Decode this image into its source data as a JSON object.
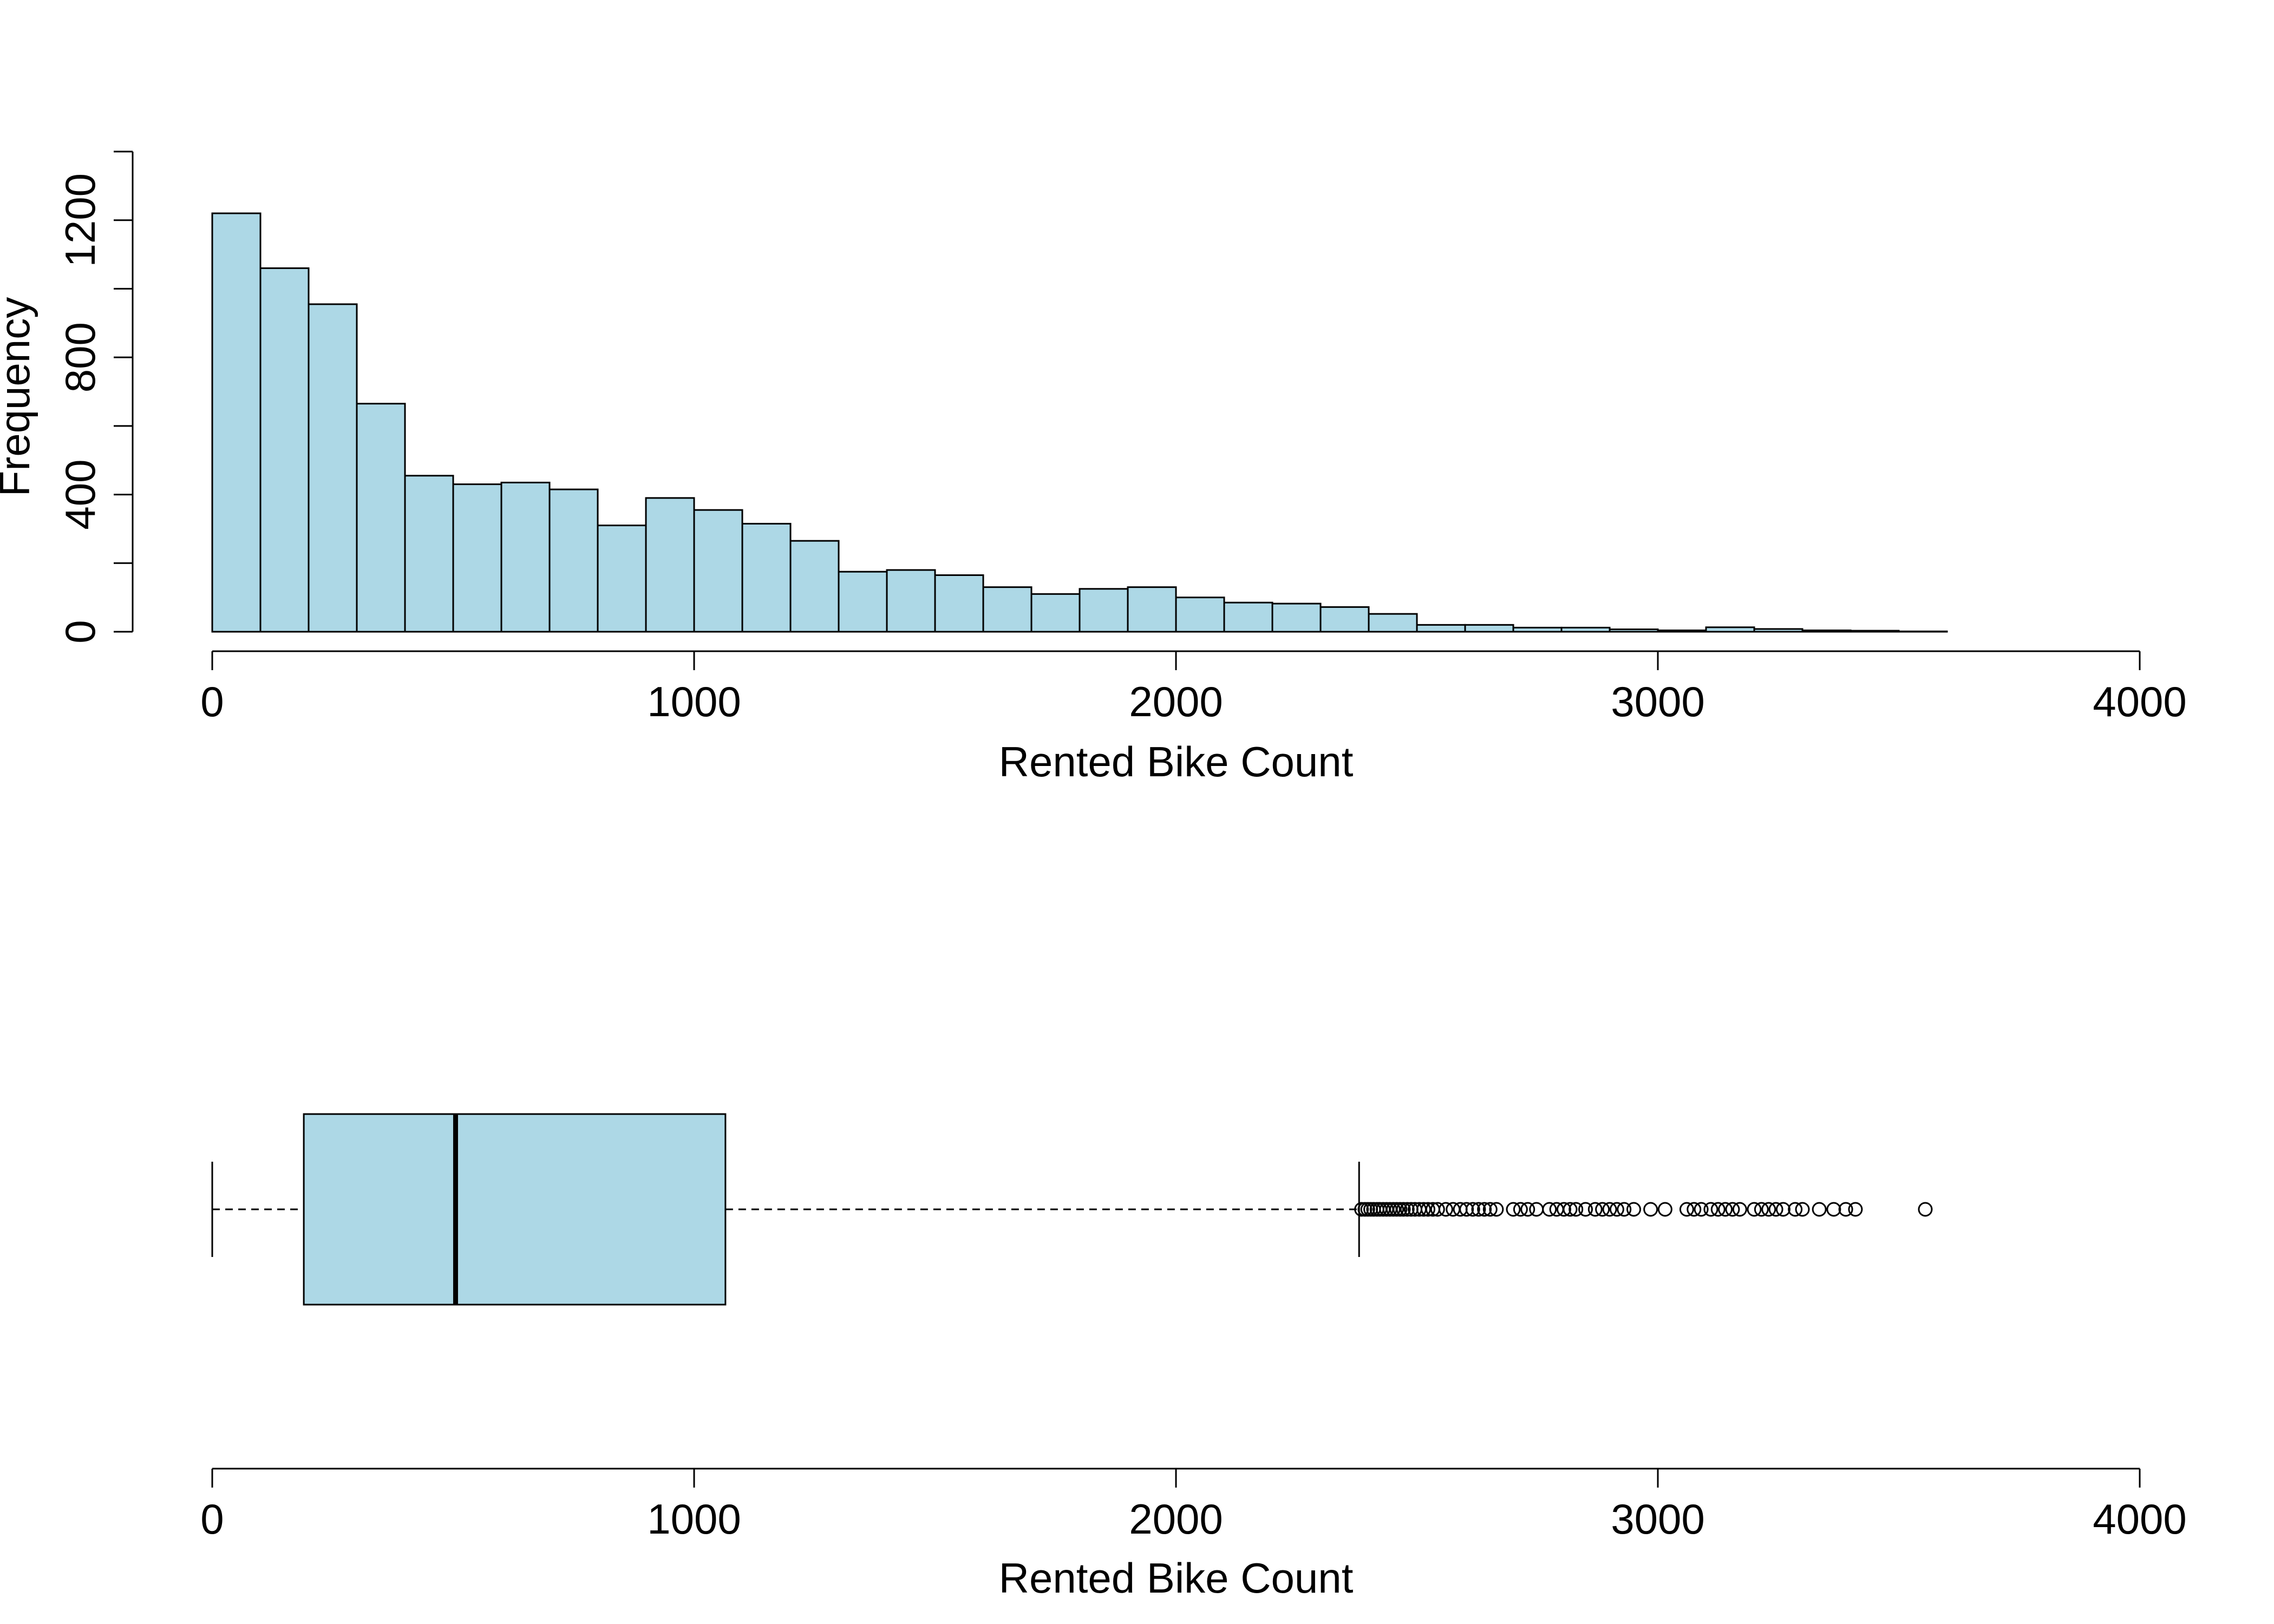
{
  "chart_data": [
    {
      "type": "histogram",
      "xlabel": "Rented Bike Count",
      "ylabel": "Frequency",
      "xlim": [
        0,
        4000
      ],
      "ylim": [
        0,
        1400
      ],
      "x_ticks": [
        0,
        1000,
        2000,
        3000,
        4000
      ],
      "y_ticks": [
        0,
        400,
        800,
        1200
      ],
      "bin_width": 100,
      "bins": [
        {
          "x0": 0,
          "x1": 100,
          "count": 1220
        },
        {
          "x0": 100,
          "x1": 200,
          "count": 1060
        },
        {
          "x0": 200,
          "x1": 300,
          "count": 955
        },
        {
          "x0": 300,
          "x1": 400,
          "count": 665
        },
        {
          "x0": 400,
          "x1": 500,
          "count": 455
        },
        {
          "x0": 500,
          "x1": 600,
          "count": 430
        },
        {
          "x0": 600,
          "x1": 700,
          "count": 435
        },
        {
          "x0": 700,
          "x1": 800,
          "count": 415
        },
        {
          "x0": 800,
          "x1": 900,
          "count": 310
        },
        {
          "x0": 900,
          "x1": 1000,
          "count": 390
        },
        {
          "x0": 1000,
          "x1": 1100,
          "count": 355
        },
        {
          "x0": 1100,
          "x1": 1200,
          "count": 315
        },
        {
          "x0": 1200,
          "x1": 1300,
          "count": 265
        },
        {
          "x0": 1300,
          "x1": 1400,
          "count": 175
        },
        {
          "x0": 1400,
          "x1": 1500,
          "count": 180
        },
        {
          "x0": 1500,
          "x1": 1600,
          "count": 165
        },
        {
          "x0": 1600,
          "x1": 1700,
          "count": 130
        },
        {
          "x0": 1700,
          "x1": 1800,
          "count": 110
        },
        {
          "x0": 1800,
          "x1": 1900,
          "count": 125
        },
        {
          "x0": 1900,
          "x1": 2000,
          "count": 130
        },
        {
          "x0": 2000,
          "x1": 2100,
          "count": 100
        },
        {
          "x0": 2100,
          "x1": 2200,
          "count": 85
        },
        {
          "x0": 2200,
          "x1": 2300,
          "count": 82
        },
        {
          "x0": 2300,
          "x1": 2400,
          "count": 72
        },
        {
          "x0": 2400,
          "x1": 2500,
          "count": 52
        },
        {
          "x0": 2500,
          "x1": 2600,
          "count": 20
        },
        {
          "x0": 2600,
          "x1": 2700,
          "count": 20
        },
        {
          "x0": 2700,
          "x1": 2800,
          "count": 12
        },
        {
          "x0": 2800,
          "x1": 2900,
          "count": 12
        },
        {
          "x0": 2900,
          "x1": 3000,
          "count": 7
        },
        {
          "x0": 3000,
          "x1": 3100,
          "count": 4
        },
        {
          "x0": 3100,
          "x1": 3200,
          "count": 13
        },
        {
          "x0": 3200,
          "x1": 3300,
          "count": 8
        },
        {
          "x0": 3300,
          "x1": 3400,
          "count": 4
        },
        {
          "x0": 3400,
          "x1": 3500,
          "count": 3
        },
        {
          "x0": 3500,
          "x1": 3600,
          "count": 1
        }
      ],
      "fill_color": "#add8e6",
      "edge_color": "#000000"
    },
    {
      "type": "boxplot",
      "orientation": "horizontal",
      "xlabel": "Rented Bike Count",
      "xlim": [
        0,
        4000
      ],
      "x_ticks": [
        0,
        1000,
        2000,
        3000,
        4000
      ],
      "min_whisker": 0,
      "q1": 190,
      "median": 505,
      "q3": 1065,
      "max_whisker": 2380,
      "outliers": [
        2385,
        2392,
        2398,
        2404,
        2410,
        2417,
        2423,
        2430,
        2437,
        2444,
        2451,
        2458,
        2465,
        2472,
        2480,
        2488,
        2496,
        2505,
        2514,
        2523,
        2533,
        2543,
        2560,
        2575,
        2590,
        2603,
        2616,
        2628,
        2640,
        2652,
        2665,
        2700,
        2715,
        2730,
        2748,
        2775,
        2790,
        2805,
        2818,
        2830,
        2850,
        2870,
        2885,
        2900,
        2915,
        2930,
        2950,
        2985,
        3015,
        3060,
        3075,
        3090,
        3110,
        3125,
        3140,
        3155,
        3170,
        3200,
        3215,
        3230,
        3245,
        3260,
        3285,
        3300,
        3335,
        3365,
        3390,
        3410,
        3555
      ],
      "fill_color": "#add8e6",
      "edge_color": "#000000"
    }
  ]
}
